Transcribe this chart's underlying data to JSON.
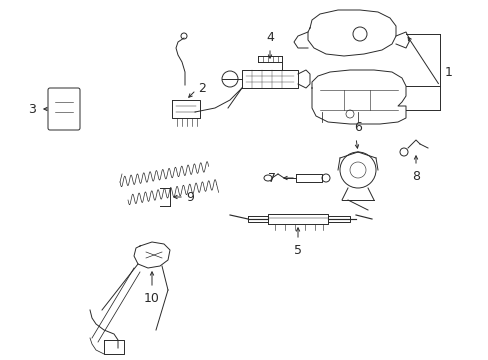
{
  "bg_color": "#ffffff",
  "line_color": "#2a2a2a",
  "fig_width": 4.89,
  "fig_height": 3.6,
  "dpi": 100,
  "xlim": [
    0,
    489
  ],
  "ylim": [
    0,
    360
  ]
}
